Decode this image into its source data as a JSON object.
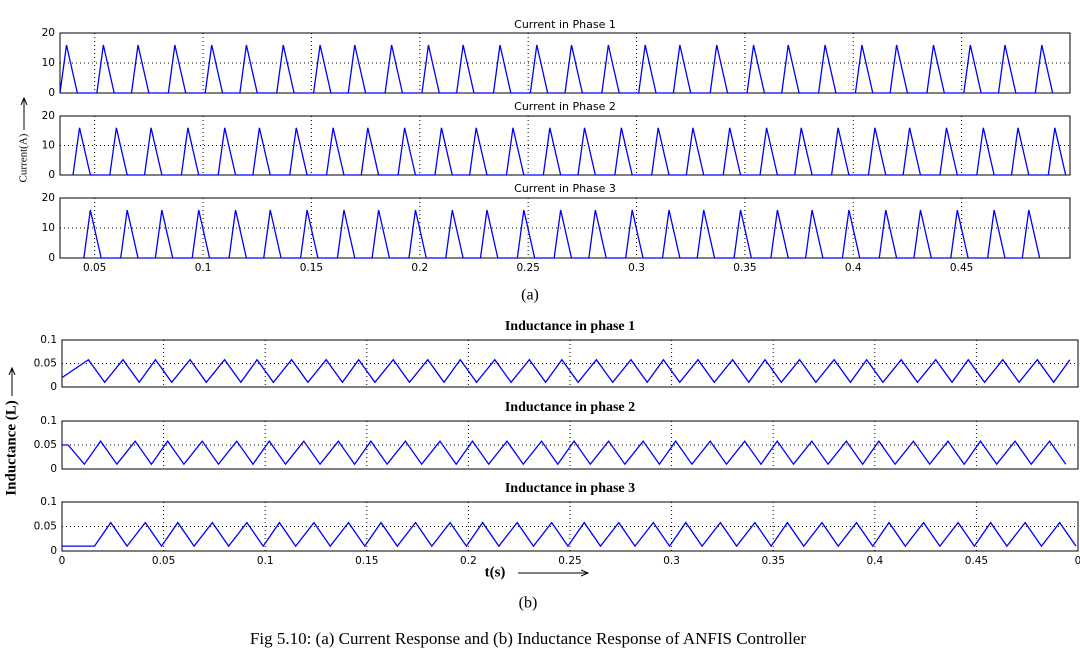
{
  "chart_data": [
    {
      "type": "line",
      "title": "Current in Phase 1",
      "grid": true,
      "show_xtick_labels": false,
      "xlim": [
        0.034,
        0.5
      ],
      "ylim": [
        0,
        20
      ],
      "yticks": [
        0,
        10,
        20
      ],
      "xticks": [
        0.05,
        0.1,
        0.15,
        0.2,
        0.25,
        0.3,
        0.35,
        0.4,
        0.45
      ],
      "x": [
        0.034,
        0.037,
        0.042,
        0.051,
        0.054,
        0.059,
        0.067,
        0.07,
        0.075,
        0.084,
        0.087,
        0.092,
        0.101,
        0.104,
        0.109,
        0.117,
        0.12,
        0.125,
        0.134,
        0.137,
        0.142,
        0.151,
        0.154,
        0.159,
        0.167,
        0.17,
        0.175,
        0.184,
        0.187,
        0.192,
        0.201,
        0.204,
        0.209,
        0.217,
        0.22,
        0.225,
        0.234,
        0.237,
        0.242,
        0.251,
        0.254,
        0.259,
        0.267,
        0.27,
        0.275,
        0.284,
        0.287,
        0.292,
        0.301,
        0.304,
        0.309,
        0.317,
        0.32,
        0.325,
        0.334,
        0.337,
        0.342,
        0.351,
        0.354,
        0.359,
        0.367,
        0.37,
        0.375,
        0.384,
        0.387,
        0.392,
        0.401,
        0.404,
        0.409,
        0.417,
        0.42,
        0.425,
        0.434,
        0.437,
        0.442,
        0.451,
        0.454,
        0.459,
        0.467,
        0.47,
        0.475,
        0.484,
        0.487,
        0.492
      ],
      "series": [
        {
          "color": "#0000ff",
          "values": [
            0,
            16,
            0,
            0,
            16,
            0,
            0,
            16,
            0,
            0,
            16,
            0,
            0,
            16,
            0,
            0,
            16,
            0,
            0,
            16,
            0,
            0,
            16,
            0,
            0,
            16,
            0,
            0,
            16,
            0,
            0,
            16,
            0,
            0,
            16,
            0,
            0,
            16,
            0,
            0,
            16,
            0,
            0,
            16,
            0,
            0,
            16,
            0,
            0,
            16,
            0,
            0,
            16,
            0,
            0,
            16,
            0,
            0,
            16,
            0,
            0,
            16,
            0,
            0,
            16,
            0,
            0,
            16,
            0,
            0,
            16,
            0,
            0,
            16,
            0,
            0,
            16,
            0,
            0,
            16,
            0,
            0,
            16,
            0
          ]
        }
      ]
    },
    {
      "type": "line",
      "title": "Current in Phase 2",
      "grid": true,
      "show_xtick_labels": false,
      "xlim": [
        0.034,
        0.5
      ],
      "ylim": [
        0,
        20
      ],
      "yticks": [
        0,
        10,
        20
      ],
      "xticks": [
        0.05,
        0.1,
        0.15,
        0.2,
        0.25,
        0.3,
        0.35,
        0.4,
        0.45
      ],
      "x": [
        0.04,
        0.043,
        0.048,
        0.057,
        0.06,
        0.065,
        0.073,
        0.076,
        0.081,
        0.09,
        0.093,
        0.098,
        0.107,
        0.11,
        0.115,
        0.123,
        0.126,
        0.131,
        0.14,
        0.143,
        0.148,
        0.157,
        0.16,
        0.165,
        0.173,
        0.176,
        0.181,
        0.19,
        0.193,
        0.198,
        0.207,
        0.21,
        0.215,
        0.223,
        0.226,
        0.231,
        0.24,
        0.243,
        0.248,
        0.257,
        0.26,
        0.265,
        0.273,
        0.276,
        0.281,
        0.29,
        0.293,
        0.298,
        0.307,
        0.31,
        0.315,
        0.323,
        0.326,
        0.331,
        0.34,
        0.343,
        0.348,
        0.357,
        0.36,
        0.365,
        0.373,
        0.376,
        0.381,
        0.39,
        0.393,
        0.398,
        0.407,
        0.41,
        0.415,
        0.423,
        0.426,
        0.431,
        0.44,
        0.443,
        0.448,
        0.457,
        0.46,
        0.465,
        0.473,
        0.476,
        0.481,
        0.49,
        0.493,
        0.498
      ],
      "series": [
        {
          "color": "#0000ff",
          "values": [
            0,
            16,
            0,
            0,
            16,
            0,
            0,
            16,
            0,
            0,
            16,
            0,
            0,
            16,
            0,
            0,
            16,
            0,
            0,
            16,
            0,
            0,
            16,
            0,
            0,
            16,
            0,
            0,
            16,
            0,
            0,
            16,
            0,
            0,
            16,
            0,
            0,
            16,
            0,
            0,
            16,
            0,
            0,
            16,
            0,
            0,
            16,
            0,
            0,
            16,
            0,
            0,
            16,
            0,
            0,
            16,
            0,
            0,
            16,
            0,
            0,
            16,
            0,
            0,
            16,
            0,
            0,
            16,
            0,
            0,
            16,
            0,
            0,
            16,
            0,
            0,
            16,
            0,
            0,
            16,
            0,
            0,
            16,
            0
          ]
        }
      ]
    },
    {
      "type": "line",
      "title": "Current in Phase 3",
      "grid": true,
      "show_xtick_labels": true,
      "xlim": [
        0.034,
        0.5
      ],
      "ylim": [
        0,
        20
      ],
      "yticks": [
        0,
        10,
        20
      ],
      "xticks": [
        0.05,
        0.1,
        0.15,
        0.2,
        0.25,
        0.3,
        0.35,
        0.4,
        0.45
      ],
      "x": [
        0.045,
        0.048,
        0.053,
        0.062,
        0.065,
        0.07,
        0.078,
        0.081,
        0.086,
        0.095,
        0.098,
        0.103,
        0.112,
        0.115,
        0.12,
        0.128,
        0.131,
        0.136,
        0.145,
        0.148,
        0.153,
        0.162,
        0.165,
        0.17,
        0.178,
        0.181,
        0.186,
        0.195,
        0.198,
        0.203,
        0.212,
        0.215,
        0.22,
        0.228,
        0.231,
        0.236,
        0.245,
        0.248,
        0.253,
        0.262,
        0.265,
        0.27,
        0.278,
        0.281,
        0.286,
        0.295,
        0.298,
        0.303,
        0.312,
        0.315,
        0.32,
        0.328,
        0.331,
        0.336,
        0.345,
        0.348,
        0.353,
        0.362,
        0.365,
        0.37,
        0.378,
        0.381,
        0.386,
        0.395,
        0.398,
        0.403,
        0.412,
        0.415,
        0.42,
        0.428,
        0.431,
        0.436,
        0.445,
        0.448,
        0.453,
        0.462,
        0.465,
        0.47,
        0.478,
        0.481,
        0.486
      ],
      "series": [
        {
          "color": "#0000ff",
          "values": [
            0,
            16,
            0,
            0,
            16,
            0,
            0,
            16,
            0,
            0,
            16,
            0,
            0,
            16,
            0,
            0,
            16,
            0,
            0,
            16,
            0,
            0,
            16,
            0,
            0,
            16,
            0,
            0,
            16,
            0,
            0,
            16,
            0,
            0,
            16,
            0,
            0,
            16,
            0,
            0,
            16,
            0,
            0,
            16,
            0,
            0,
            16,
            0,
            0,
            16,
            0,
            0,
            16,
            0,
            0,
            16,
            0,
            0,
            16,
            0,
            0,
            16,
            0,
            0,
            16,
            0,
            0,
            16,
            0,
            0,
            16,
            0,
            0,
            16,
            0,
            0,
            16,
            0,
            0,
            16,
            0
          ]
        }
      ]
    },
    {
      "type": "line",
      "title": "Inductance in phase 1",
      "grid": true,
      "show_xtick_labels": false,
      "xlim": [
        0,
        0.5
      ],
      "ylim": [
        0,
        0.1
      ],
      "yticks": [
        0,
        0.05,
        0.1
      ],
      "xticks": [
        0,
        0.05,
        0.1,
        0.15,
        0.2,
        0.25,
        0.3,
        0.35,
        0.4,
        0.45,
        {
          "value": 0.5,
          "label": "0"
        }
      ],
      "x": [
        0,
        0.013,
        0.021,
        0.03,
        0.038,
        0.046,
        0.054,
        0.063,
        0.071,
        0.08,
        0.088,
        0.096,
        0.104,
        0.113,
        0.121,
        0.13,
        0.138,
        0.146,
        0.154,
        0.163,
        0.171,
        0.18,
        0.188,
        0.196,
        0.204,
        0.213,
        0.221,
        0.23,
        0.238,
        0.246,
        0.254,
        0.263,
        0.271,
        0.28,
        0.288,
        0.296,
        0.304,
        0.313,
        0.321,
        0.33,
        0.338,
        0.346,
        0.354,
        0.363,
        0.371,
        0.38,
        0.388,
        0.396,
        0.404,
        0.413,
        0.421,
        0.43,
        0.438,
        0.446,
        0.454,
        0.463,
        0.471,
        0.48,
        0.488,
        0.496
      ],
      "series": [
        {
          "color": "#0000ff",
          "values": [
            0.02,
            0.058,
            0.01,
            0.058,
            0.01,
            0.058,
            0.01,
            0.058,
            0.01,
            0.058,
            0.01,
            0.058,
            0.01,
            0.058,
            0.01,
            0.058,
            0.01,
            0.058,
            0.01,
            0.058,
            0.01,
            0.058,
            0.01,
            0.058,
            0.01,
            0.058,
            0.01,
            0.058,
            0.01,
            0.058,
            0.01,
            0.058,
            0.01,
            0.058,
            0.01,
            0.058,
            0.01,
            0.058,
            0.01,
            0.058,
            0.01,
            0.058,
            0.01,
            0.058,
            0.01,
            0.058,
            0.01,
            0.058,
            0.01,
            0.058,
            0.01,
            0.058,
            0.01,
            0.058,
            0.01,
            0.058,
            0.01,
            0.058,
            0.01,
            0.058
          ]
        }
      ]
    },
    {
      "type": "line",
      "title": "Inductance in phase 2",
      "grid": true,
      "show_xtick_labels": false,
      "xlim": [
        0,
        0.5
      ],
      "ylim": [
        0,
        0.1
      ],
      "yticks": [
        0,
        0.05,
        0.1
      ],
      "xticks": [
        0,
        0.05,
        0.1,
        0.15,
        0.2,
        0.25,
        0.3,
        0.35,
        0.4,
        0.45,
        {
          "value": 0.5,
          "label": "0"
        }
      ],
      "x": [
        0,
        0.003,
        0.011,
        0.019,
        0.027,
        0.036,
        0.044,
        0.052,
        0.06,
        0.069,
        0.077,
        0.086,
        0.094,
        0.102,
        0.11,
        0.119,
        0.127,
        0.136,
        0.144,
        0.152,
        0.16,
        0.169,
        0.177,
        0.186,
        0.194,
        0.202,
        0.21,
        0.219,
        0.227,
        0.236,
        0.244,
        0.252,
        0.26,
        0.269,
        0.277,
        0.286,
        0.294,
        0.302,
        0.31,
        0.319,
        0.327,
        0.336,
        0.344,
        0.352,
        0.36,
        0.369,
        0.377,
        0.386,
        0.394,
        0.402,
        0.41,
        0.419,
        0.427,
        0.436,
        0.444,
        0.452,
        0.46,
        0.469,
        0.477,
        0.486,
        0.494
      ],
      "series": [
        {
          "color": "#0000ff",
          "values": [
            0.05,
            0.05,
            0.01,
            0.058,
            0.01,
            0.058,
            0.01,
            0.058,
            0.01,
            0.058,
            0.01,
            0.058,
            0.01,
            0.058,
            0.01,
            0.058,
            0.01,
            0.058,
            0.01,
            0.058,
            0.01,
            0.058,
            0.01,
            0.058,
            0.01,
            0.058,
            0.01,
            0.058,
            0.01,
            0.058,
            0.01,
            0.058,
            0.01,
            0.058,
            0.01,
            0.058,
            0.01,
            0.058,
            0.01,
            0.058,
            0.01,
            0.058,
            0.01,
            0.058,
            0.01,
            0.058,
            0.01,
            0.058,
            0.01,
            0.058,
            0.01,
            0.058,
            0.01,
            0.058,
            0.01,
            0.058,
            0.01,
            0.058,
            0.01,
            0.058,
            0.01
          ]
        }
      ]
    },
    {
      "type": "line",
      "title": "Inductance in phase 3",
      "grid": true,
      "show_xtick_labels": true,
      "xlim": [
        0,
        0.5
      ],
      "ylim": [
        0,
        0.1
      ],
      "yticks": [
        0,
        0.05,
        0.1
      ],
      "xticks": [
        0,
        0.05,
        0.1,
        0.15,
        0.2,
        0.25,
        0.3,
        0.35,
        0.4,
        0.45,
        {
          "value": 0.5,
          "label": "0"
        }
      ],
      "x": [
        0,
        0.016,
        0.024,
        0.032,
        0.041,
        0.049,
        0.057,
        0.065,
        0.074,
        0.082,
        0.091,
        0.099,
        0.107,
        0.115,
        0.124,
        0.132,
        0.141,
        0.149,
        0.157,
        0.165,
        0.174,
        0.182,
        0.191,
        0.199,
        0.207,
        0.215,
        0.224,
        0.232,
        0.241,
        0.249,
        0.257,
        0.265,
        0.274,
        0.282,
        0.291,
        0.299,
        0.307,
        0.315,
        0.324,
        0.332,
        0.341,
        0.349,
        0.357,
        0.365,
        0.374,
        0.382,
        0.391,
        0.399,
        0.407,
        0.415,
        0.424,
        0.432,
        0.441,
        0.449,
        0.457,
        0.465,
        0.474,
        0.482,
        0.491,
        0.499
      ],
      "series": [
        {
          "color": "#0000ff",
          "values": [
            0.01,
            0.01,
            0.058,
            0.01,
            0.058,
            0.01,
            0.058,
            0.01,
            0.058,
            0.01,
            0.058,
            0.01,
            0.058,
            0.01,
            0.058,
            0.01,
            0.058,
            0.01,
            0.058,
            0.01,
            0.058,
            0.01,
            0.058,
            0.01,
            0.058,
            0.01,
            0.058,
            0.01,
            0.058,
            0.01,
            0.058,
            0.01,
            0.058,
            0.01,
            0.058,
            0.01,
            0.058,
            0.01,
            0.058,
            0.01,
            0.058,
            0.01,
            0.058,
            0.01,
            0.058,
            0.01,
            0.058,
            0.01,
            0.058,
            0.01,
            0.058,
            0.01,
            0.058,
            0.01,
            0.058,
            0.01,
            0.058,
            0.01,
            0.058,
            0.01
          ]
        }
      ]
    }
  ],
  "figure_a": {
    "ylabel": "Current(A)",
    "label": "(a)"
  },
  "figure_b": {
    "ylabel": "Inductance (L)",
    "xlabel": "t(s)",
    "label": "(b)"
  },
  "caption": "Fig 5.10:  (a) Current Response   and (b) Inductance Response of ANFIS Controller"
}
